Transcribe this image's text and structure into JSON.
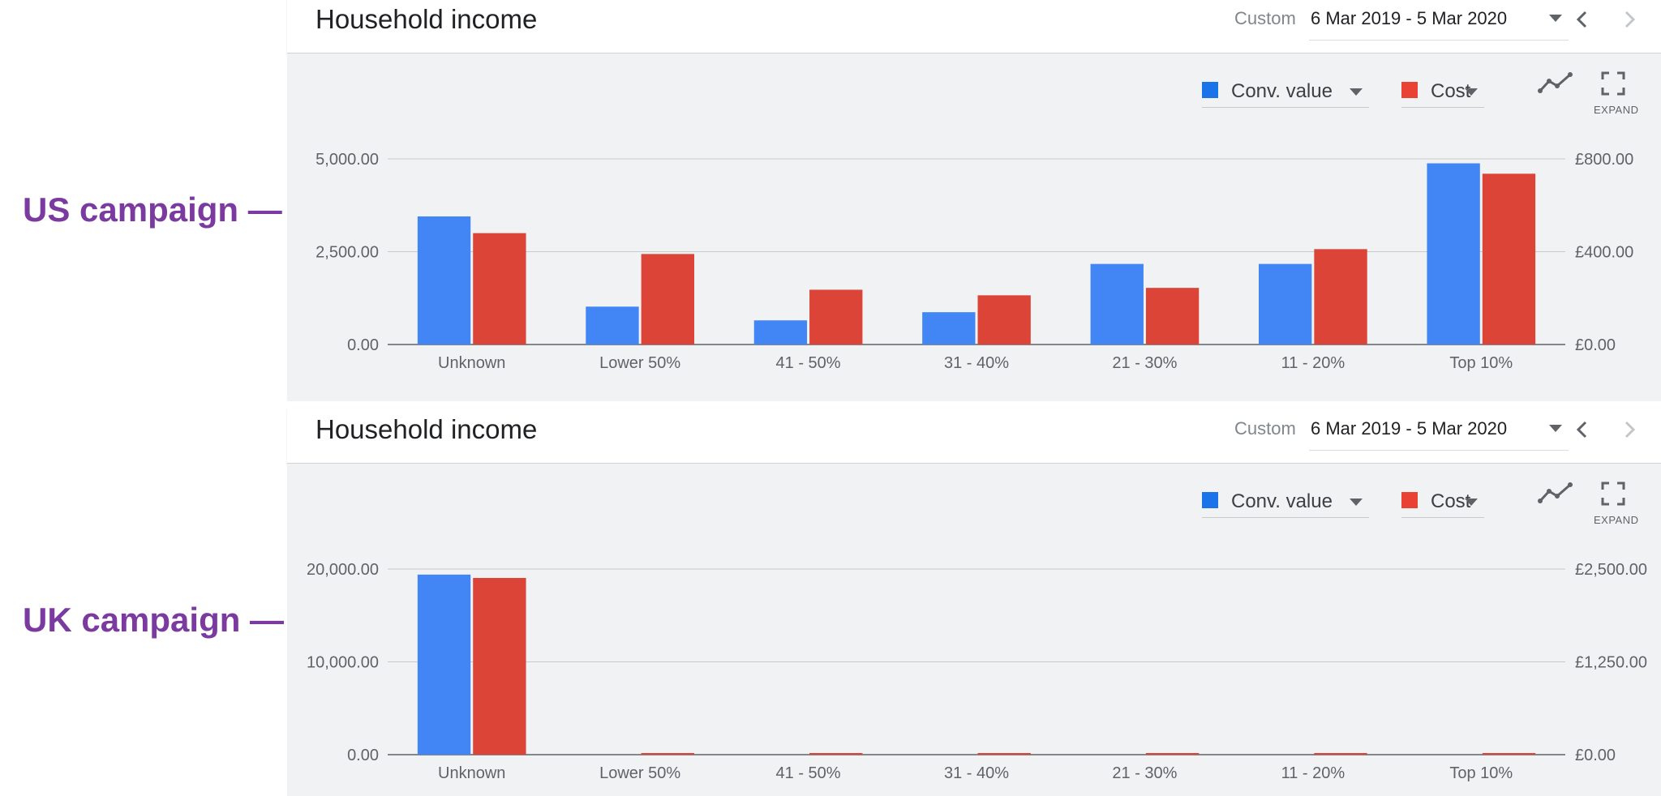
{
  "annotations": {
    "us": "US campaign — >",
    "uk": "UK campaign — >"
  },
  "panels": [
    {
      "title": "Household income",
      "range_label": "Custom",
      "date_range": "6 Mar 2019 - 5 Mar 2020",
      "metrics": [
        {
          "label": "Conv. value",
          "color": "#1a73e8"
        },
        {
          "label": "Cost",
          "color": "#e94235"
        }
      ],
      "expand_label": "EXPAND"
    },
    {
      "title": "Household income",
      "range_label": "Custom",
      "date_range": "6 Mar 2019 - 5 Mar 2020",
      "metrics": [
        {
          "label": "Conv. value",
          "color": "#1a73e8"
        },
        {
          "label": "Cost",
          "color": "#e94235"
        }
      ],
      "expand_label": "EXPAND"
    }
  ],
  "chart_data": [
    {
      "type": "bar",
      "title": "Household income",
      "categories": [
        "Unknown",
        "Lower 50%",
        "41 - 50%",
        "31 - 40%",
        "21 - 30%",
        "11 - 20%",
        "Top 10%"
      ],
      "series": [
        {
          "name": "Conv. value",
          "axis": "left",
          "color": "#4285f4",
          "values": [
            3450,
            1020,
            650,
            870,
            2170,
            2170,
            4880
          ]
        },
        {
          "name": "Cost",
          "axis": "right",
          "color": "#db4437",
          "values": [
            480,
            390,
            236,
            212,
            244,
            411,
            736
          ]
        }
      ],
      "y_left": {
        "ticks": [
          0,
          2500,
          5000
        ],
        "tick_labels": [
          "0.00",
          "2,500.00",
          "5,000.00"
        ],
        "max": 5000
      },
      "y_right": {
        "ticks": [
          0,
          400,
          800
        ],
        "tick_labels": [
          "£0.00",
          "£400.00",
          "£800.00"
        ],
        "max": 800
      },
      "grid": true,
      "legend": "top-right"
    },
    {
      "type": "bar",
      "title": "Household income",
      "categories": [
        "Unknown",
        "Lower 50%",
        "41 - 50%",
        "31 - 40%",
        "21 - 30%",
        "11 - 20%",
        "Top 10%"
      ],
      "series": [
        {
          "name": "Conv. value",
          "axis": "left",
          "color": "#4285f4",
          "values": [
            19400,
            0,
            0,
            0,
            0,
            0,
            0
          ]
        },
        {
          "name": "Cost",
          "axis": "right",
          "color": "#db4437",
          "values": [
            2380,
            5,
            5,
            5,
            5,
            5,
            5
          ]
        }
      ],
      "y_left": {
        "ticks": [
          0,
          10000,
          20000
        ],
        "tick_labels": [
          "0.00",
          "10,000.00",
          "20,000.00"
        ],
        "max": 20000
      },
      "y_right": {
        "ticks": [
          0,
          1250,
          2500
        ],
        "tick_labels": [
          "£0.00",
          "£1,250.00",
          "£2,500.00"
        ],
        "max": 2500
      },
      "grid": true,
      "legend": "top-right"
    }
  ]
}
